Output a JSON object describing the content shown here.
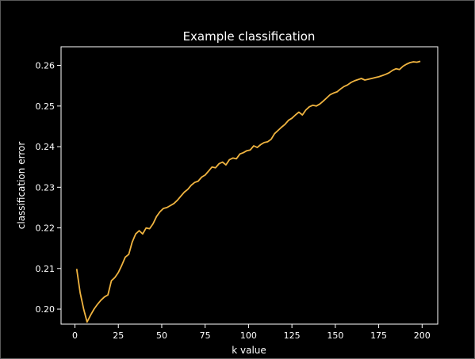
{
  "chart_data": {
    "type": "line",
    "title": "Example classification",
    "xlabel": "k value",
    "ylabel": "classification error",
    "xlim": [
      -8,
      209
    ],
    "ylim": [
      0.1963,
      0.2646
    ],
    "x_ticks": [
      0,
      25,
      50,
      75,
      100,
      125,
      150,
      175,
      200
    ],
    "x_tick_labels": [
      "0",
      "25",
      "50",
      "75",
      "100",
      "125",
      "150",
      "175",
      "200"
    ],
    "y_ticks": [
      0.2,
      0.21,
      0.22,
      0.23,
      0.24,
      0.25,
      0.26
    ],
    "y_tick_labels": [
      "0.20",
      "0.21",
      "0.22",
      "0.23",
      "0.24",
      "0.25",
      "0.26"
    ],
    "grid": false,
    "colors": {
      "background": "#000000",
      "axes": "#ffffff",
      "text": "#ffffff",
      "line": "#f0b440"
    },
    "series": [
      {
        "color": "#f0b440",
        "points": [
          [
            1,
            0.2099
          ],
          [
            3,
            0.204
          ],
          [
            5,
            0.2
          ],
          [
            7,
            0.1968
          ],
          [
            9,
            0.1985
          ],
          [
            11,
            0.2
          ],
          [
            13,
            0.2012
          ],
          [
            15,
            0.2022
          ],
          [
            17,
            0.203
          ],
          [
            19,
            0.2035
          ],
          [
            21,
            0.207
          ],
          [
            23,
            0.2078
          ],
          [
            25,
            0.209
          ],
          [
            27,
            0.2108
          ],
          [
            29,
            0.2128
          ],
          [
            31,
            0.2135
          ],
          [
            33,
            0.2165
          ],
          [
            35,
            0.2185
          ],
          [
            37,
            0.2193
          ],
          [
            39,
            0.2185
          ],
          [
            41,
            0.22
          ],
          [
            43,
            0.2198
          ],
          [
            45,
            0.221
          ],
          [
            47,
            0.2228
          ],
          [
            49,
            0.224
          ],
          [
            51,
            0.2248
          ],
          [
            53,
            0.225
          ],
          [
            55,
            0.2255
          ],
          [
            57,
            0.226
          ],
          [
            59,
            0.2268
          ],
          [
            61,
            0.2278
          ],
          [
            63,
            0.2288
          ],
          [
            65,
            0.2295
          ],
          [
            67,
            0.2305
          ],
          [
            69,
            0.2312
          ],
          [
            71,
            0.2315
          ],
          [
            73,
            0.2325
          ],
          [
            75,
            0.233
          ],
          [
            77,
            0.234
          ],
          [
            79,
            0.235
          ],
          [
            81,
            0.2348
          ],
          [
            83,
            0.2358
          ],
          [
            85,
            0.2362
          ],
          [
            87,
            0.2355
          ],
          [
            89,
            0.2368
          ],
          [
            91,
            0.2372
          ],
          [
            93,
            0.237
          ],
          [
            95,
            0.2382
          ],
          [
            97,
            0.2385
          ],
          [
            99,
            0.239
          ],
          [
            101,
            0.2392
          ],
          [
            103,
            0.2402
          ],
          [
            105,
            0.2398
          ],
          [
            107,
            0.2405
          ],
          [
            109,
            0.241
          ],
          [
            111,
            0.2412
          ],
          [
            113,
            0.2418
          ],
          [
            115,
            0.2432
          ],
          [
            117,
            0.244
          ],
          [
            119,
            0.2448
          ],
          [
            121,
            0.2455
          ],
          [
            123,
            0.2465
          ],
          [
            125,
            0.247
          ],
          [
            127,
            0.2478
          ],
          [
            129,
            0.2485
          ],
          [
            131,
            0.2478
          ],
          [
            133,
            0.249
          ],
          [
            135,
            0.2498
          ],
          [
            137,
            0.2502
          ],
          [
            139,
            0.25
          ],
          [
            141,
            0.2505
          ],
          [
            143,
            0.2512
          ],
          [
            145,
            0.252
          ],
          [
            147,
            0.2528
          ],
          [
            149,
            0.2532
          ],
          [
            151,
            0.2535
          ],
          [
            153,
            0.2542
          ],
          [
            155,
            0.2548
          ],
          [
            157,
            0.2552
          ],
          [
            159,
            0.2558
          ],
          [
            161,
            0.2562
          ],
          [
            163,
            0.2565
          ],
          [
            165,
            0.2568
          ],
          [
            167,
            0.2564
          ],
          [
            169,
            0.2566
          ],
          [
            171,
            0.2568
          ],
          [
            173,
            0.257
          ],
          [
            175,
            0.2572
          ],
          [
            177,
            0.2575
          ],
          [
            179,
            0.2578
          ],
          [
            181,
            0.2582
          ],
          [
            183,
            0.2588
          ],
          [
            185,
            0.2592
          ],
          [
            187,
            0.259
          ],
          [
            189,
            0.2598
          ],
          [
            191,
            0.2603
          ],
          [
            193,
            0.2607
          ],
          [
            195,
            0.2609
          ],
          [
            197,
            0.2608
          ],
          [
            199,
            0.261
          ]
        ]
      }
    ]
  }
}
